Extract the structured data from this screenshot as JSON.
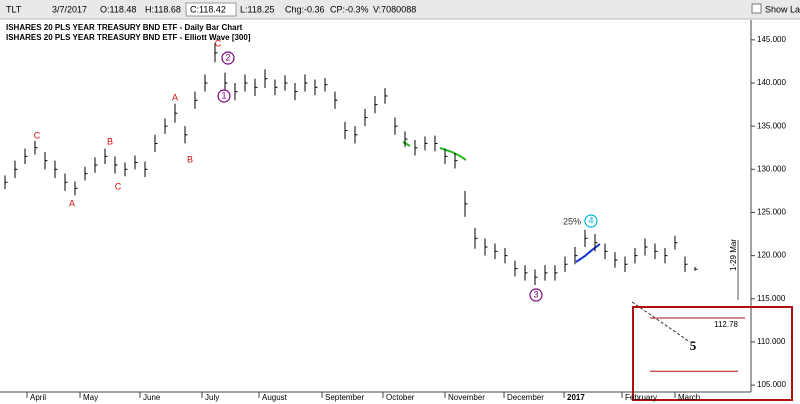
{
  "header": {
    "symbol": "TLT",
    "date": "3/7/2017",
    "open": "O:118.48",
    "high": "H:118.68",
    "close": "C:118.42",
    "low": "L:118.25",
    "change": "Chg:-0.36",
    "change_pct": "CP:-0.3%",
    "volume": "V:7080088",
    "show_last": "Show Last"
  },
  "chart_data": {
    "type": "ohlc",
    "title": "ISHARES 20 PLS YEAR TREASURY BND ETF - Daily Bar Chart",
    "subtitle": "ISHARES 20 PLS YEAR TREASURY BND ETF - Elliott Wave [300]",
    "x_labels": [
      "April",
      "May",
      "June",
      "July",
      "August",
      "September",
      "October",
      "November",
      "December",
      "2017",
      "February",
      "March"
    ],
    "high": [
      129.3,
      131,
      132.4,
      133.3,
      132,
      131,
      129.5,
      128.6,
      130.3,
      131.4,
      132.4,
      131.5,
      130.8,
      131.6,
      130.9,
      134,
      135.9,
      137.6,
      135,
      139,
      141,
      144.6,
      141.2,
      140,
      141,
      140.5,
      141.6,
      140.4,
      140.9,
      140,
      141,
      140.4,
      140.6,
      139,
      135.5,
      135,
      137,
      138.5,
      139.4,
      136,
      134.4,
      133.4,
      133.8,
      133.9,
      132.4,
      131.9,
      127.5,
      123.2,
      122,
      121.4,
      120.9,
      119.4,
      118.9,
      118.4,
      118.9,
      118.9,
      119.9,
      121,
      123,
      122.5,
      121.4,
      120.4,
      119.9,
      120.9,
      122,
      121.4,
      120.9,
      122.3,
      119.9,
      118.68
    ],
    "low": [
      127.7,
      129,
      130.6,
      131.7,
      130,
      129,
      127.5,
      127,
      128.7,
      129.6,
      130.6,
      129.5,
      129.2,
      130,
      129.1,
      132,
      134.1,
      135.4,
      133,
      137,
      139,
      142.4,
      138.8,
      138,
      139,
      138.5,
      139.4,
      138.6,
      139.1,
      138,
      139,
      138.6,
      139,
      137,
      133.5,
      133,
      135,
      136.5,
      137.6,
      134,
      132.6,
      131.6,
      132.2,
      132.1,
      130.6,
      130.1,
      124.5,
      120.8,
      120,
      119.6,
      119.1,
      117.6,
      117.1,
      116.6,
      117.1,
      117.1,
      118.1,
      119,
      121,
      120.5,
      119.6,
      118.6,
      118.1,
      119.1,
      120,
      119.6,
      119.1,
      120.7,
      118.1,
      118.25
    ],
    "close": [
      128.5,
      130,
      131.5,
      132.5,
      131,
      130,
      128.5,
      127.8,
      129.5,
      130.5,
      131.5,
      130.5,
      130,
      130.8,
      130,
      133,
      135,
      136.5,
      134,
      138,
      140,
      143.5,
      140,
      139,
      140,
      139.5,
      140.5,
      139.5,
      140,
      139,
      140,
      139.5,
      139.8,
      138,
      134.5,
      134,
      136,
      137.5,
      138.5,
      135,
      133.5,
      132.5,
      133,
      133,
      131.5,
      131,
      126,
      122,
      121,
      120.5,
      120,
      118.5,
      118,
      117.5,
      118,
      118,
      119,
      120,
      122,
      121.5,
      120.5,
      119.5,
      119,
      120,
      121,
      120.5,
      120,
      121.5,
      119,
      118.42
    ],
    "color": "#000000",
    "ylim": [
      104.2,
      147.3
    ],
    "yticks": [
      {
        "value": 105,
        "label": "105.000"
      },
      {
        "value": 110,
        "label": "110.000"
      },
      {
        "value": 115,
        "label": "115.000"
      },
      {
        "value": 120,
        "label": "120.000"
      },
      {
        "value": 125,
        "label": "125.000"
      },
      {
        "value": 130,
        "label": "130.000"
      },
      {
        "value": 135,
        "label": "135.000"
      },
      {
        "value": 140,
        "label": "140.000"
      },
      {
        "value": 145,
        "label": "145.000"
      }
    ],
    "wave_labels": [
      "C",
      "A",
      "B",
      "C",
      "A",
      "B",
      "C",
      "2",
      "1",
      "3",
      "4",
      "25%",
      "5"
    ],
    "target": 112.78,
    "target_low": 106.6,
    "date_label": "1-29 Mar"
  }
}
